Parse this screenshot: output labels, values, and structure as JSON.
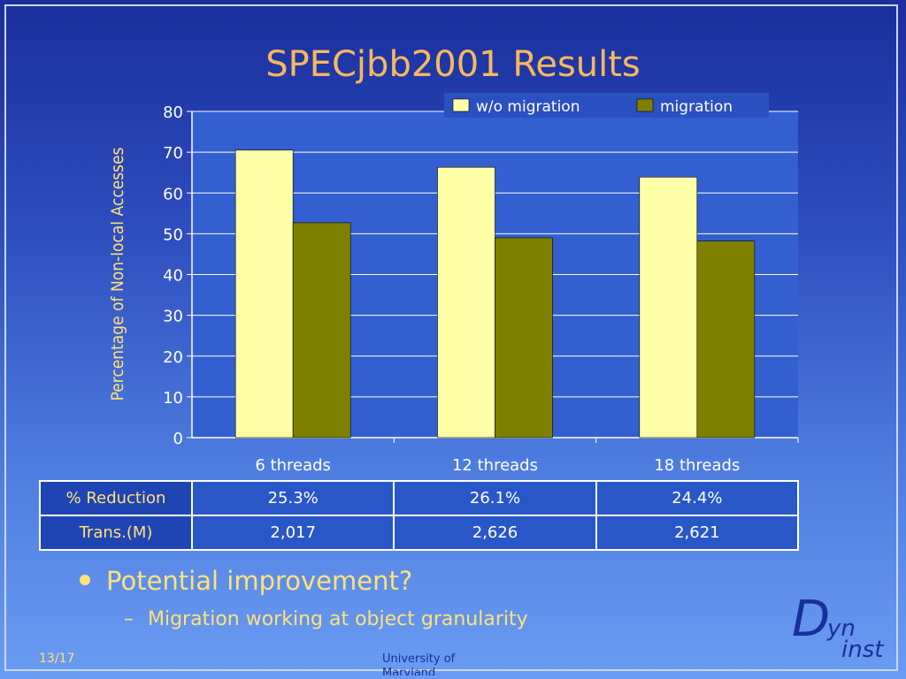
{
  "slide": {
    "title": "SPECjbb2001 Results",
    "page_number": "13/17",
    "footer_text": "University of Maryland",
    "logo": {
      "big_letter": "D",
      "upper": "yn",
      "lower": "inst"
    }
  },
  "chart_data": {
    "type": "bar",
    "categories": [
      "6 threads",
      "12 threads",
      "18 threads"
    ],
    "series": [
      {
        "name": "w/o migration",
        "values": [
          70.5,
          66.3,
          63.9
        ],
        "color": "#ffffa8"
      },
      {
        "name": "migration",
        "values": [
          52.7,
          49.0,
          48.2
        ],
        "color": "#808000"
      }
    ],
    "title": "",
    "xlabel": "",
    "ylabel": "Percentage of Non-local Accesses",
    "ylim": [
      0,
      80
    ],
    "yticks": [
      0,
      10,
      20,
      30,
      40,
      50,
      60,
      70,
      80
    ],
    "grid": true,
    "legend": "top-right"
  },
  "table": {
    "rows": [
      {
        "label": "% Reduction",
        "cells": [
          "25.3%",
          "26.1%",
          "24.4%"
        ]
      },
      {
        "label": "Trans.(M)",
        "cells": [
          "2,017",
          "2,626",
          "2,621"
        ]
      }
    ]
  },
  "bullets": {
    "main": "Potential improvement?",
    "sub": "Migration working at object granularity",
    "sub_marker": "–"
  }
}
